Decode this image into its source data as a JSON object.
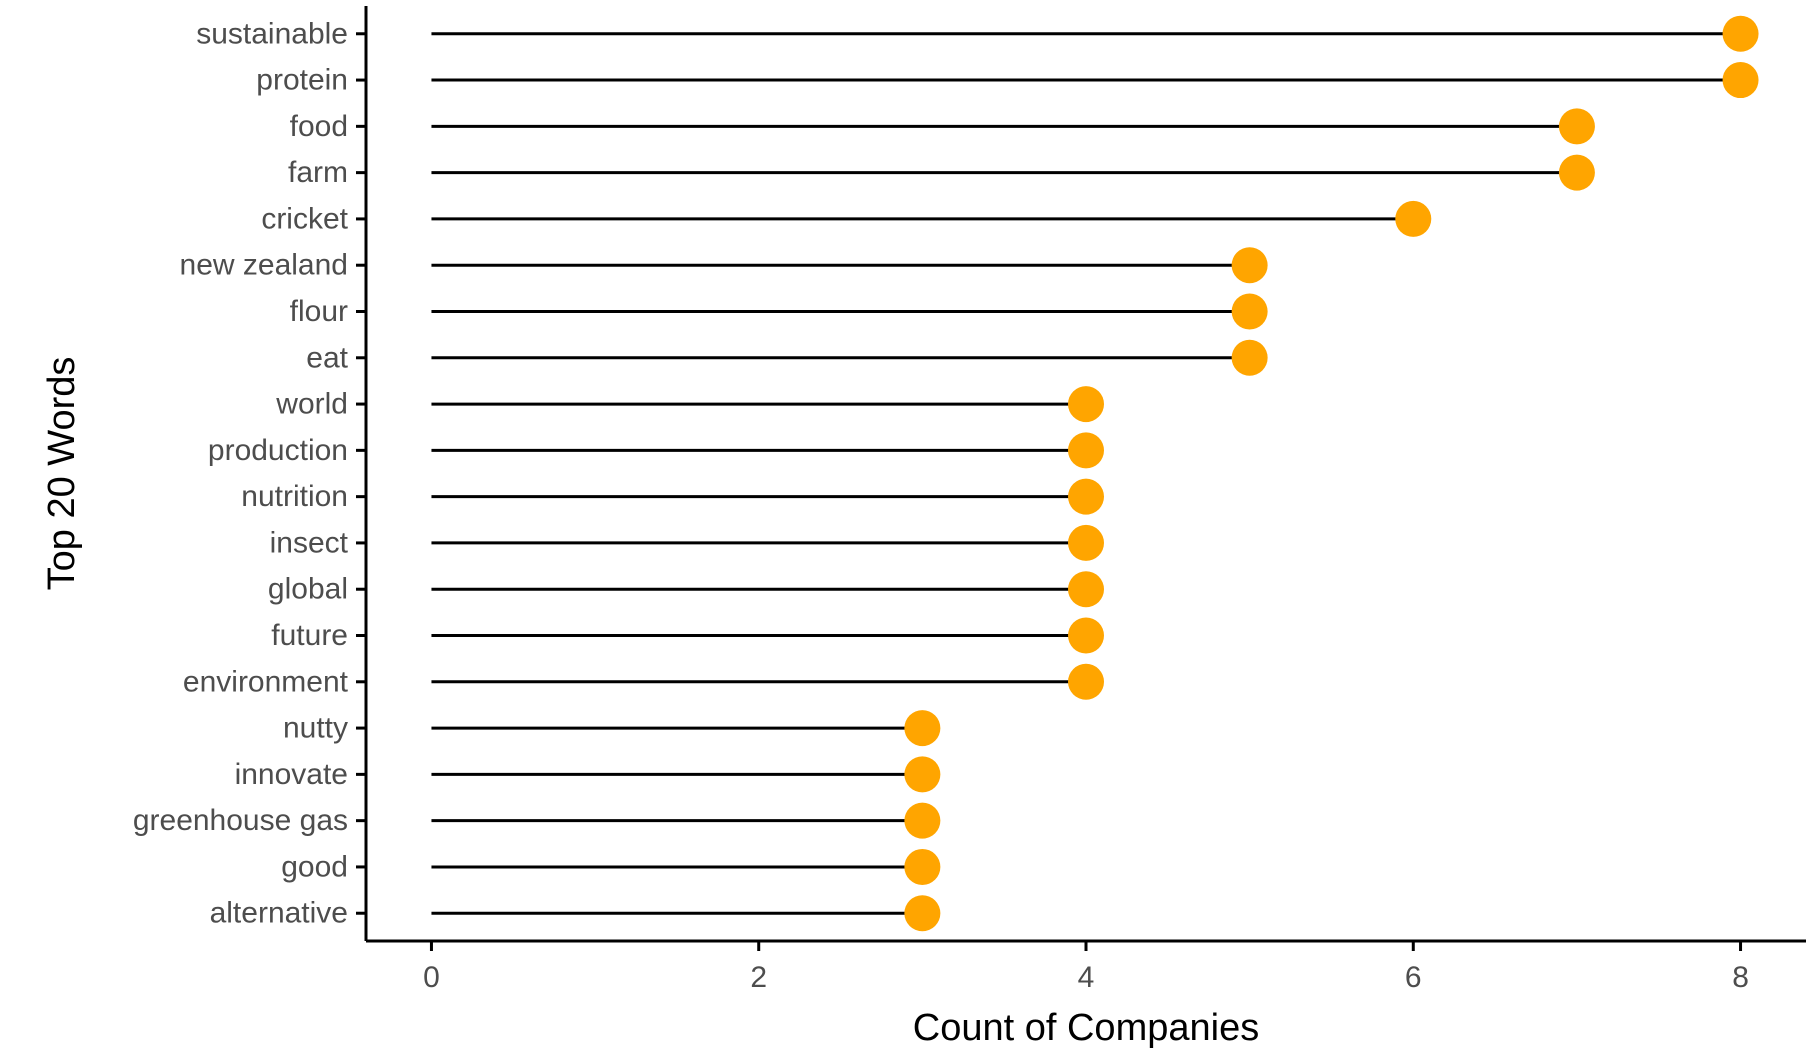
{
  "chart_data": {
    "type": "lollipop",
    "title": "",
    "xlabel": "Count of Companies",
    "ylabel": "Top 20 Words",
    "xlim": [
      -0.4,
      8.4
    ],
    "xticks": [
      0,
      2,
      4,
      6,
      8
    ],
    "grid": false,
    "legend": "none",
    "categories": [
      "sustainable",
      "protein",
      "food",
      "farm",
      "cricket",
      "new zealand",
      "flour",
      "eat",
      "world",
      "production",
      "nutrition",
      "insect",
      "global",
      "future",
      "environment",
      "nutty",
      "innovate",
      "greenhouse gas",
      "good",
      "alternative"
    ],
    "values": [
      8,
      8,
      7,
      7,
      6,
      5,
      5,
      5,
      4,
      4,
      4,
      4,
      4,
      4,
      4,
      3,
      3,
      3,
      3,
      3
    ],
    "colors": {
      "point": "#FFA500",
      "stem": "#000000",
      "axis": "#000000",
      "tick_text": "#4d4d4d"
    }
  }
}
